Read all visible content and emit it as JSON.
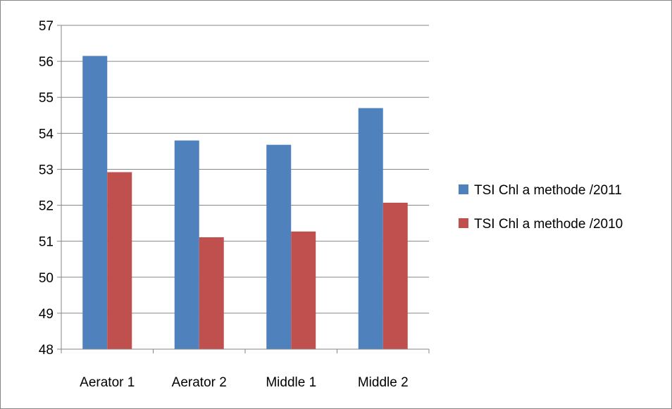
{
  "chart_data": {
    "type": "bar",
    "categories": [
      "Aerator 1",
      "Aerator 2",
      "Middle 1",
      "Middle 2"
    ],
    "series": [
      {
        "name": "TSI Chl a methode /2011",
        "color": "#4F81BD",
        "values": [
          56.15,
          53.8,
          53.68,
          54.7
        ]
      },
      {
        "name": "TSI Chl a methode /2010",
        "color": "#C0504D",
        "values": [
          52.92,
          51.11,
          51.27,
          52.07
        ]
      }
    ],
    "yticks": [
      "48",
      "49",
      "50",
      "51",
      "52",
      "53",
      "54",
      "55",
      "56",
      "57"
    ],
    "ylim": [
      48,
      57
    ],
    "grid": true,
    "legend_position": "right"
  }
}
